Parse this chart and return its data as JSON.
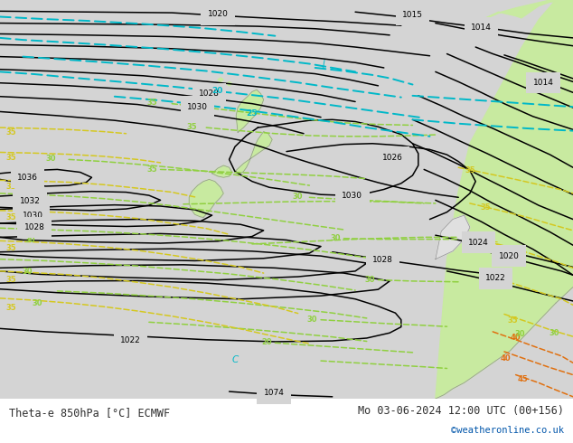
{
  "title_left": "Theta-e 850hPa [°C] ECMWF",
  "title_right": "Mo 03-06-2024 12:00 UTC (00+156)",
  "copyright": "©weatheronline.co.uk",
  "bg_color": "#d4d4d4",
  "ocean_color": "#d4d4d4",
  "land_color": "#e0e0e0",
  "green_color": "#c8eaa0",
  "fig_width": 6.34,
  "fig_height": 4.9,
  "dpi": 100,
  "isobar_color": "#000000",
  "theta_green_color": "#90d040",
  "theta_yellow_color": "#d4c820",
  "theta_orange_color": "#e07010",
  "theta_cyan_color": "#00b8c8",
  "label_color_left": "#303030",
  "label_color_right": "#303030",
  "copyright_color": "#0055aa"
}
